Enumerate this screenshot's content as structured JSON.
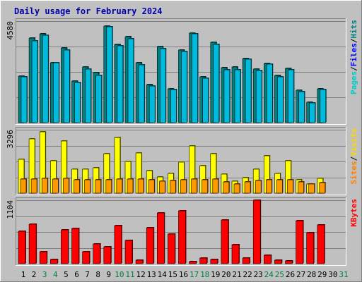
{
  "title": "Daily usage for February 2024",
  "colors": {
    "background": "#c0c0c0",
    "plot": "#ffffff",
    "title": "#0000aa",
    "pages": "#00cccc",
    "files": "#0000ff",
    "hits": "#008080",
    "sites": "#ff8000",
    "visits": "#ffd700",
    "kbytes": "#ff0000",
    "weekday": "#000000",
    "weekend": "#008040"
  },
  "chart_data": [
    {
      "type": "bar",
      "name": "hits-files-pages",
      "ymax_label": "4580",
      "ymax": 4580,
      "legend": [
        {
          "text": "Pages",
          "color": "#00cccc"
        },
        {
          "text": "Files",
          "color": "#0000ff"
        },
        {
          "text": "Hits",
          "color": "#008080"
        }
      ],
      "series": [
        {
          "name": "Hits",
          "color": "#008080",
          "values": [
            2110,
            3810,
            4000,
            2700,
            3360,
            1880,
            2500,
            2250,
            4350,
            3520,
            3880,
            2690,
            1710,
            3440,
            1530,
            3280,
            4050,
            2060,
            3630,
            2470,
            2510,
            2900,
            2430,
            2670,
            2140,
            2460,
            1470,
            930,
            1520
          ]
        },
        {
          "name": "Files",
          "color": "#00bbdd",
          "values": [
            2070,
            3700,
            3930,
            2700,
            3270,
            1820,
            2430,
            2140,
            4320,
            3470,
            3800,
            2620,
            1650,
            3340,
            1480,
            3200,
            4000,
            1990,
            3530,
            2390,
            2380,
            2860,
            2360,
            2650,
            2070,
            2390,
            1410,
            890,
            1480
          ]
        }
      ]
    },
    {
      "type": "bar",
      "name": "visits-sites",
      "ymax_label": "3296",
      "ymax": 3296,
      "legend": [
        {
          "text": "Sites",
          "color": "#ff8000"
        },
        {
          "text": "Visits",
          "color": "#ffd700"
        }
      ],
      "series": [
        {
          "name": "Visits",
          "color": "#ffff00",
          "values": [
            1770,
            2820,
            3200,
            1700,
            2700,
            1260,
            1260,
            1320,
            2060,
            2880,
            1660,
            2090,
            1180,
            850,
            1030,
            1600,
            2460,
            1440,
            2040,
            980,
            630,
            800,
            1260,
            1940,
            1010,
            1680,
            690,
            490,
            780
          ]
        },
        {
          "name": "Sites",
          "color": "#ff9900",
          "values": [
            750,
            750,
            760,
            740,
            760,
            690,
            680,
            690,
            710,
            750,
            740,
            740,
            690,
            620,
            670,
            700,
            740,
            700,
            750,
            580,
            470,
            580,
            650,
            680,
            700,
            700,
            580,
            480,
            540
          ]
        }
      ]
    },
    {
      "type": "bar",
      "name": "kbytes",
      "ymax_label": "1104",
      "ymax": 1104,
      "legend": [
        {
          "text": "KBytes",
          "color": "#ff0000"
        }
      ],
      "series": [
        {
          "name": "KBytes",
          "color": "#ff0000",
          "values": [
            560,
            690,
            205,
            72,
            590,
            610,
            210,
            340,
            300,
            660,
            400,
            60,
            630,
            880,
            520,
            920,
            40,
            95,
            70,
            755,
            330,
            95,
            1104,
            150,
            62,
            50,
            750,
            535,
            670
          ]
        }
      ]
    }
  ],
  "x_labels": [
    {
      "text": "1",
      "weekend": false
    },
    {
      "text": "2",
      "weekend": false
    },
    {
      "text": "3",
      "weekend": true
    },
    {
      "text": "4",
      "weekend": true
    },
    {
      "text": "5",
      "weekend": false
    },
    {
      "text": "6",
      "weekend": false
    },
    {
      "text": "7",
      "weekend": false
    },
    {
      "text": "8",
      "weekend": false
    },
    {
      "text": "9",
      "weekend": false
    },
    {
      "text": "10",
      "weekend": true
    },
    {
      "text": "11",
      "weekend": true
    },
    {
      "text": "12",
      "weekend": false
    },
    {
      "text": "13",
      "weekend": false
    },
    {
      "text": "14",
      "weekend": false
    },
    {
      "text": "15",
      "weekend": false
    },
    {
      "text": "16",
      "weekend": false
    },
    {
      "text": "17",
      "weekend": true
    },
    {
      "text": "18",
      "weekend": true
    },
    {
      "text": "19",
      "weekend": false
    },
    {
      "text": "20",
      "weekend": false
    },
    {
      "text": "21",
      "weekend": false
    },
    {
      "text": "22",
      "weekend": false
    },
    {
      "text": "23",
      "weekend": false
    },
    {
      "text": "24",
      "weekend": true
    },
    {
      "text": "25",
      "weekend": true
    },
    {
      "text": "26",
      "weekend": false
    },
    {
      "text": "27",
      "weekend": false
    },
    {
      "text": "28",
      "weekend": false
    },
    {
      "text": "29",
      "weekend": false
    },
    {
      "text": "30",
      "weekend": false
    },
    {
      "text": "31",
      "weekend": true
    }
  ]
}
